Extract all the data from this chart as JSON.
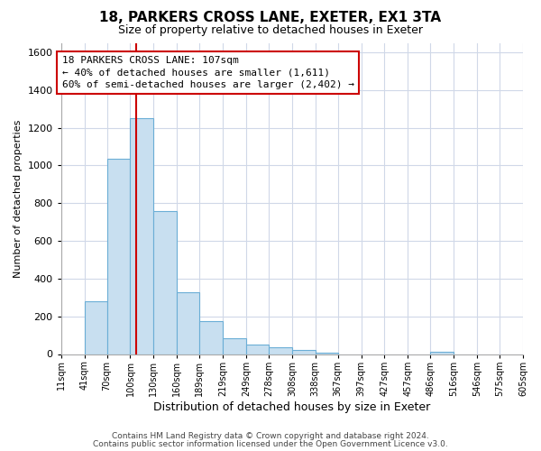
{
  "title": "18, PARKERS CROSS LANE, EXETER, EX1 3TA",
  "subtitle": "Size of property relative to detached houses in Exeter",
  "xlabel": "Distribution of detached houses by size in Exeter",
  "ylabel": "Number of detached properties",
  "bin_edges": [
    11,
    41,
    70,
    100,
    130,
    160,
    189,
    219,
    249,
    278,
    308,
    338,
    367,
    397,
    427,
    457,
    486,
    516,
    546,
    575,
    605
  ],
  "bar_heights": [
    0,
    280,
    1035,
    1250,
    760,
    330,
    175,
    85,
    50,
    38,
    20,
    5,
    0,
    0,
    0,
    0,
    10,
    0,
    0,
    0
  ],
  "bar_color": "#c8dff0",
  "bar_edge_color": "#6baed6",
  "vline_x": 107,
  "vline_color": "#cc0000",
  "ylim": [
    0,
    1650
  ],
  "yticks": [
    0,
    200,
    400,
    600,
    800,
    1000,
    1200,
    1400,
    1600
  ],
  "annotation_line1": "18 PARKERS CROSS LANE: 107sqm",
  "annotation_line2": "← 40% of detached houses are smaller (1,611)",
  "annotation_line3": "60% of semi-detached houses are larger (2,402) →",
  "annotation_box_color": "#ffffff",
  "annotation_box_edge": "#cc0000",
  "footer_line1": "Contains HM Land Registry data © Crown copyright and database right 2024.",
  "footer_line2": "Contains public sector information licensed under the Open Government Licence v3.0.",
  "tick_labels": [
    "11sqm",
    "41sqm",
    "70sqm",
    "100sqm",
    "130sqm",
    "160sqm",
    "189sqm",
    "219sqm",
    "249sqm",
    "278sqm",
    "308sqm",
    "338sqm",
    "367sqm",
    "397sqm",
    "427sqm",
    "457sqm",
    "486sqm",
    "516sqm",
    "546sqm",
    "575sqm",
    "605sqm"
  ],
  "background_color": "#ffffff",
  "grid_color": "#d0d8e8",
  "title_fontsize": 11,
  "subtitle_fontsize": 9,
  "ylabel_fontsize": 8,
  "xlabel_fontsize": 9,
  "tick_fontsize": 7,
  "ytick_fontsize": 8,
  "annotation_fontsize": 8,
  "footer_fontsize": 6.5
}
